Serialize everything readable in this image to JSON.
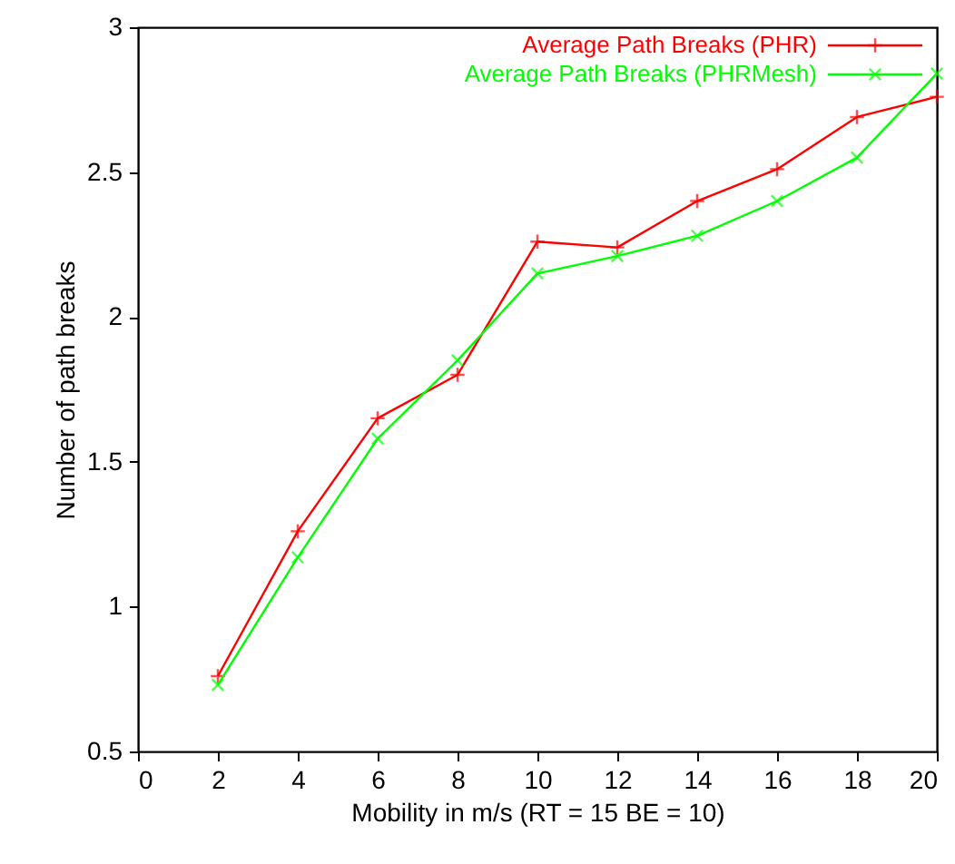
{
  "chart_data": {
    "type": "line",
    "xlabel": "Mobility in m/s (RT = 15 BE = 10)",
    "ylabel": "Number of path breaks",
    "x": [
      2,
      4,
      6,
      8,
      10,
      12,
      14,
      16,
      18,
      20
    ],
    "series": [
      {
        "name": "Average Path Breaks (PHR)",
        "color": "#ff0000",
        "marker": "cross",
        "values": [
          0.76,
          1.26,
          1.65,
          1.8,
          2.26,
          2.24,
          2.4,
          2.51,
          2.69,
          2.76
        ]
      },
      {
        "name": "Average Path Breaks (PHRMesh)",
        "color": "#00ff00",
        "marker": "x",
        "values": [
          0.73,
          1.17,
          1.58,
          1.85,
          2.15,
          2.21,
          2.28,
          2.4,
          2.55,
          2.84
        ]
      }
    ],
    "xlim": [
      0,
      20
    ],
    "xticks": [
      0,
      2,
      4,
      6,
      8,
      10,
      12,
      14,
      16,
      18,
      20
    ],
    "ylim": [
      0.5,
      3
    ],
    "yticks": [
      0.5,
      1,
      1.5,
      2,
      2.5,
      3
    ],
    "grid": false,
    "legend": "top right"
  }
}
